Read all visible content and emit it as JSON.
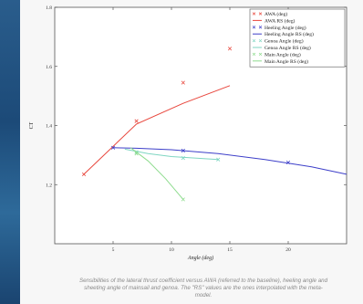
{
  "caption": {
    "line1": "Sensibilities of the lateral thrust coefficient versus AWA (referred to the baseline), heeling angle and",
    "line2": "sheeting angle of mainsail and genoa. The \"RS\" values are the ones interpolated with the meta-",
    "line3": "model."
  },
  "chart_data": {
    "type": "line",
    "title": "",
    "xlabel": "Angle (deg)",
    "ylabel": "CT",
    "xlim": [
      0,
      25
    ],
    "ylim": [
      1.0,
      1.8
    ],
    "x_ticks": [
      {
        "value": 5,
        "label": "5"
      },
      {
        "value": 10,
        "label": "10"
      },
      {
        "value": 15,
        "label": "15"
      },
      {
        "value": 20,
        "label": "20"
      }
    ],
    "y_ticks": [
      {
        "value": 1.2,
        "label": "1.2"
      },
      {
        "value": 1.4,
        "label": "1.4"
      },
      {
        "value": 1.6,
        "label": "1.6"
      },
      {
        "value": 1.8,
        "label": "1.8"
      }
    ],
    "grid": false,
    "legend_position": "top-right",
    "series": [
      {
        "name": "AWA (deg)",
        "style": "markers",
        "marker": "x",
        "color": "#e8463c",
        "x": [
          2.5,
          7,
          11,
          15
        ],
        "y": [
          1.235,
          1.415,
          1.545,
          1.66
        ]
      },
      {
        "name": "AWA RS (deg)",
        "style": "line",
        "color": "#e8463c",
        "x": [
          2.5,
          7,
          11,
          15
        ],
        "y": [
          1.235,
          1.405,
          1.475,
          1.535
        ]
      },
      {
        "name": "Heeling Angle (deg)",
        "style": "markers",
        "marker": "x",
        "color": "#3d3fc9",
        "x": [
          5,
          11,
          20
        ],
        "y": [
          1.325,
          1.315,
          1.275
        ]
      },
      {
        "name": "Heeling Angle RS (deg)",
        "style": "line",
        "color": "#3d3fc9",
        "x": [
          5,
          7,
          10,
          14,
          18,
          22,
          25
        ],
        "y": [
          1.325,
          1.323,
          1.318,
          1.305,
          1.285,
          1.26,
          1.235
        ]
      },
      {
        "name": "Genoa Angle (deg)",
        "style": "markers",
        "marker": "x",
        "color": "#7fd6c2",
        "x": [
          7,
          11,
          14
        ],
        "y": [
          1.31,
          1.29,
          1.285
        ]
      },
      {
        "name": "Genoa Angle  RS (deg)",
        "style": "line",
        "color": "#7fd6c2",
        "x": [
          6,
          8,
          10,
          12,
          14
        ],
        "y": [
          1.32,
          1.305,
          1.295,
          1.29,
          1.285
        ]
      },
      {
        "name": "Main Angle (deg)",
        "style": "markers",
        "marker": "x",
        "color": "#8fdc8f",
        "x": [
          7,
          11
        ],
        "y": [
          1.305,
          1.15
        ]
      },
      {
        "name": "Main Angle RS (deg)",
        "style": "line",
        "color": "#8fdc8f",
        "x": [
          6.5,
          8,
          9.5,
          11
        ],
        "y": [
          1.325,
          1.28,
          1.22,
          1.15
        ]
      }
    ]
  }
}
